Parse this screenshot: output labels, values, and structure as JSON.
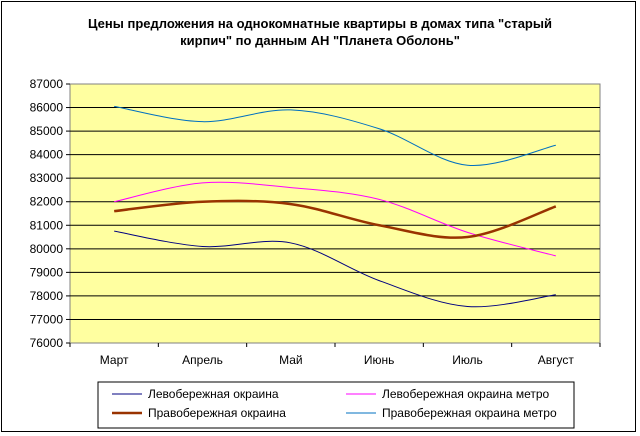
{
  "chart_data": {
    "type": "line",
    "title": "Цены предложения на однокомнатные квартиры в домах типа \"старый кирпич\" по данным АН \"Планета Оболонь\"",
    "title_lines": [
      "Цены предложения на однокомнатные квартиры в домах типа \"старый",
      "кирпич\" по данным АН \"Планета Оболонь\""
    ],
    "categories": [
      "Март",
      "Апрель",
      "Май",
      "Июнь",
      "Июль",
      "Август"
    ],
    "ylim": [
      76000,
      87000
    ],
    "yticks": [
      "76000",
      "77000",
      "78000",
      "79000",
      "80000",
      "81000",
      "82000",
      "83000",
      "84000",
      "85000",
      "86000",
      "87000"
    ],
    "grid": true,
    "plot_background": "#ffffa0",
    "smoothed": true,
    "legend_position": "bottom",
    "series": [
      {
        "name": "Левобережная окраина",
        "color": "#000080",
        "values": [
          80750,
          80100,
          80250,
          78650,
          77550,
          78050
        ]
      },
      {
        "name": "Левобережная окраина метро",
        "color": "#ff00ff",
        "values": [
          82000,
          82800,
          82600,
          82100,
          80700,
          79700
        ]
      },
      {
        "name": "Правобережная окраина",
        "color": "#993300",
        "values": [
          81600,
          82000,
          81900,
          81000,
          80500,
          81800
        ]
      },
      {
        "name": "Правобережная окраина метро",
        "color": "#0070c0",
        "values": [
          86050,
          85400,
          85900,
          85100,
          83550,
          84400
        ]
      }
    ]
  }
}
